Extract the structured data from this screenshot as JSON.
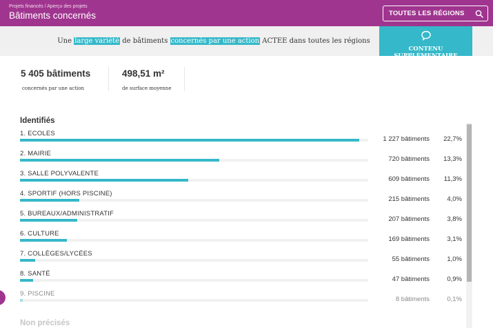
{
  "header": {
    "breadcrumb": "Projets financés / Aperçu des projets",
    "title": "Bâtiments concernés",
    "region_select": {
      "label": "TOUTES LES RÉGIONS",
      "icon": "search-icon"
    },
    "color": "#a0358f"
  },
  "banner": {
    "part1": "Une ",
    "hl1": "large variété",
    "part2": " de bâtiments ",
    "hl2": "concernés par une action",
    "part3": " ACTEE dans toutes les régions",
    "extra_button": {
      "label": "CONTENU SUPPLÉMENTAIRE",
      "icon": "speech-bubble-icon"
    },
    "accent": "#35b8c9"
  },
  "stats": [
    {
      "value": "5 405 bâtiments",
      "caption": "concernés par une action"
    },
    {
      "value": "498,51 m²",
      "caption": "de surface moyenne"
    }
  ],
  "identified": {
    "title": "Identifiés",
    "items": [
      {
        "name": "1. ECOLES",
        "count": "1 227 bâtiments",
        "pct": "22,7%",
        "share": 0.975
      },
      {
        "name": "2. MAIRIE",
        "count": "720 bâtiments",
        "pct": "13,3%",
        "share": 0.573
      },
      {
        "name": "3. SALLE POLYVALENTE",
        "count": "609 bâtiments",
        "pct": "11,3%",
        "share": 0.484
      },
      {
        "name": "4. SPORTIF (HORS PISCINE)",
        "count": "215 bâtiments",
        "pct": "4,0%",
        "share": 0.171
      },
      {
        "name": "5. BUREAUX/ADMINISTRATIF",
        "count": "207 bâtiments",
        "pct": "3,8%",
        "share": 0.165
      },
      {
        "name": "6. CULTURE",
        "count": "169 bâtiments",
        "pct": "3,1%",
        "share": 0.134
      },
      {
        "name": "7. COLLÈGES/LYCÉES",
        "count": "55 bâtiments",
        "pct": "1,0%",
        "share": 0.044
      },
      {
        "name": "8. SANTÉ",
        "count": "47 bâtiments",
        "pct": "0,9%",
        "share": 0.037
      },
      {
        "name": "9. PISCINE",
        "count": "8 bâtiments",
        "pct": "0,1%",
        "share": 0.007
      }
    ]
  },
  "not_specified": {
    "title": "Non précisés"
  }
}
